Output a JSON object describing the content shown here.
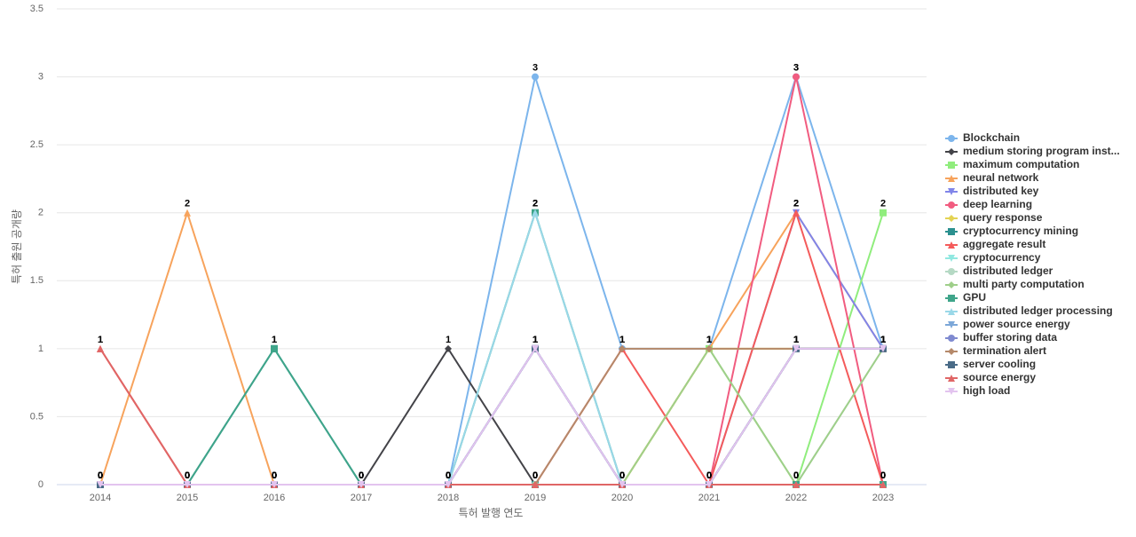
{
  "chart_data": {
    "type": "line",
    "x_label": "특허 발행 연도",
    "y_label": "특허 출원 공개량",
    "categories": [
      "2014",
      "2015",
      "2016",
      "2017",
      "2018",
      "2019",
      "2020",
      "2021",
      "2022",
      "2023"
    ],
    "ylim": [
      0,
      3.5
    ],
    "yticks": [
      0,
      0.5,
      1,
      1.5,
      2,
      2.5,
      3,
      3.5
    ],
    "grid": true,
    "data_labels": true,
    "legend": "right",
    "series": [
      {
        "name": "Blockchain",
        "color": "#7cb5ec",
        "marker": "circle",
        "values": [
          0,
          0,
          0,
          0,
          0,
          3,
          1,
          1,
          3,
          1
        ]
      },
      {
        "name": "medium storing program inst...",
        "color": "#434348",
        "marker": "diamond",
        "values": [
          0,
          0,
          0,
          0,
          1,
          0,
          0,
          0,
          1,
          1
        ]
      },
      {
        "name": "maximum computation",
        "color": "#90ed7d",
        "marker": "square",
        "values": [
          0,
          0,
          0,
          0,
          0,
          0,
          0,
          1,
          0,
          2
        ]
      },
      {
        "name": "neural network",
        "color": "#f7a35c",
        "marker": "triangle",
        "values": [
          0,
          2,
          0,
          0,
          0,
          0,
          0,
          1,
          2,
          1
        ]
      },
      {
        "name": "distributed key",
        "color": "#8085e9",
        "marker": "triangle-down",
        "values": [
          0,
          0,
          0,
          0,
          0,
          1,
          0,
          0,
          2,
          1
        ]
      },
      {
        "name": "deep learning",
        "color": "#f15c80",
        "marker": "circle",
        "values": [
          0,
          0,
          0,
          0,
          0,
          0,
          0,
          0,
          3,
          0
        ]
      },
      {
        "name": "query response",
        "color": "#e4d354",
        "marker": "diamond",
        "values": [
          0,
          0,
          0,
          0,
          0,
          0,
          0,
          1,
          1,
          1
        ]
      },
      {
        "name": "cryptocurrency mining",
        "color": "#2b908f",
        "marker": "square",
        "values": [
          0,
          0,
          1,
          0,
          0,
          0,
          0,
          0,
          0,
          0
        ]
      },
      {
        "name": "aggregate result",
        "color": "#f45b5b",
        "marker": "triangle",
        "values": [
          1,
          0,
          0,
          0,
          0,
          0,
          1,
          0,
          2,
          0
        ]
      },
      {
        "name": "cryptocurrency",
        "color": "#91e8e1",
        "marker": "triangle-down",
        "values": [
          0,
          0,
          0,
          0,
          0,
          2,
          0,
          0,
          0,
          0
        ]
      },
      {
        "name": "distributed ledger",
        "color": "#b5d9c4",
        "marker": "circle",
        "values": [
          0,
          0,
          0,
          0,
          0,
          0,
          0,
          0,
          0,
          1
        ]
      },
      {
        "name": "multi party computation",
        "color": "#9fcf8a",
        "marker": "diamond",
        "values": [
          0,
          0,
          0,
          0,
          0,
          0,
          0,
          1,
          0,
          1
        ]
      },
      {
        "name": "GPU",
        "color": "#3fa58a",
        "marker": "square",
        "values": [
          0,
          0,
          1,
          0,
          0,
          2,
          0,
          0,
          0,
          0
        ]
      },
      {
        "name": "distributed ledger processing",
        "color": "#9ad8e8",
        "marker": "triangle",
        "values": [
          0,
          0,
          0,
          0,
          0,
          2,
          0,
          0,
          0,
          0
        ]
      },
      {
        "name": "power source energy",
        "color": "#7ca7d8",
        "marker": "triangle-down",
        "values": [
          0,
          0,
          0,
          0,
          0,
          1,
          0,
          0,
          1,
          1
        ]
      },
      {
        "name": "buffer storing data",
        "color": "#7f8ad0",
        "marker": "circle",
        "values": [
          0,
          0,
          0,
          0,
          0,
          1,
          0,
          0,
          1,
          1
        ]
      },
      {
        "name": "termination alert",
        "color": "#b5896a",
        "marker": "diamond",
        "values": [
          0,
          0,
          0,
          0,
          0,
          0,
          1,
          1,
          1,
          1
        ]
      },
      {
        "name": "server cooling",
        "color": "#4a6b87",
        "marker": "square",
        "values": [
          0,
          0,
          0,
          0,
          0,
          1,
          0,
          0,
          1,
          1
        ]
      },
      {
        "name": "source energy",
        "color": "#e06666",
        "marker": "triangle",
        "values": [
          1,
          0,
          0,
          0,
          0,
          0,
          0,
          0,
          0,
          0
        ]
      },
      {
        "name": "high load",
        "color": "#e3c4ef",
        "marker": "triangle-down",
        "values": [
          0,
          0,
          0,
          0,
          0,
          1,
          0,
          0,
          1,
          1
        ]
      }
    ]
  }
}
